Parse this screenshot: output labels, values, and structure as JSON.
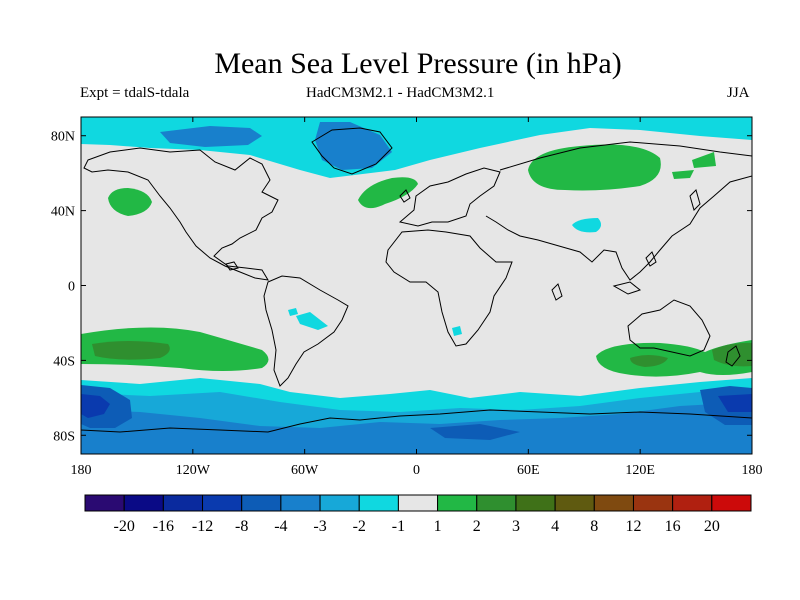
{
  "title": "Mean Sea Level Pressure (in hPa)",
  "experiment": "Expt = tdalS-tdala",
  "models": "HadCM3M2.1 - HadCM3M2.1",
  "season": "JJA",
  "map": {
    "projection": "cylindrical equidistant",
    "lon_range": [
      -180,
      180
    ],
    "lat_range": [
      -90,
      90
    ],
    "lon_ticks": [
      {
        "value": -180,
        "label": "180"
      },
      {
        "value": -120,
        "label": "120W"
      },
      {
        "value": -60,
        "label": "60W"
      },
      {
        "value": 0,
        "label": "0"
      },
      {
        "value": 60,
        "label": "60E"
      },
      {
        "value": 120,
        "label": "120E"
      },
      {
        "value": 180,
        "label": "180"
      }
    ],
    "lat_ticks": [
      {
        "value": 80,
        "label": "80N"
      },
      {
        "value": 40,
        "label": "40N"
      },
      {
        "value": 0,
        "label": "0"
      },
      {
        "value": -40,
        "label": "40S"
      },
      {
        "value": -80,
        "label": "80S"
      }
    ]
  },
  "colorbar": {
    "colors": [
      "#2a0a72",
      "#0a0a86",
      "#0a2a9e",
      "#0a3aae",
      "#0d5cb6",
      "#1880cc",
      "#17a8d8",
      "#10d8e0",
      "#e6e6e6",
      "#22b845",
      "#2f8f2f",
      "#3f7118",
      "#5f5a10",
      "#7f4a10",
      "#9a3410",
      "#b02010",
      "#cc0a0a"
    ],
    "labels": [
      "-20",
      "-16",
      "-12",
      "-8",
      "-4",
      "-3",
      "-2",
      "-1",
      "1",
      "2",
      "3",
      "4",
      "8",
      "12",
      "16",
      "20"
    ]
  }
}
